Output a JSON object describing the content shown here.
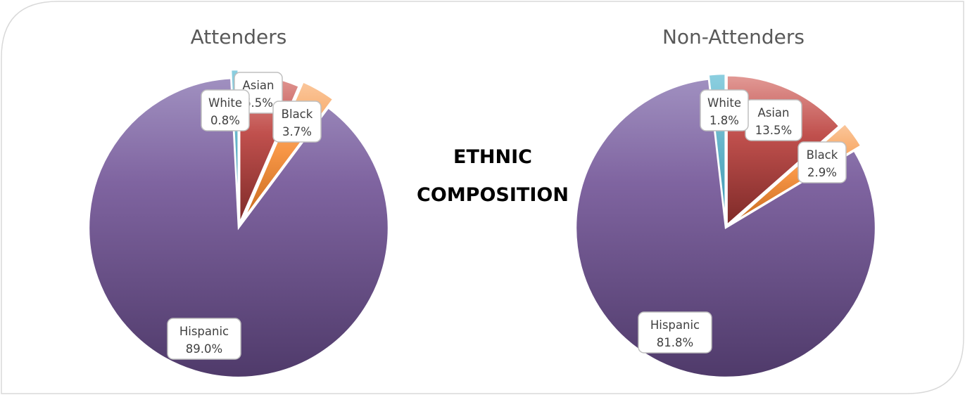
{
  "chart_data": [
    {
      "type": "pie",
      "title": "Attenders",
      "categories": [
        "Asian",
        "Black",
        "Hispanic",
        "White"
      ],
      "values": [
        6.5,
        3.7,
        89.0,
        0.8
      ],
      "labels": [
        "6.5%",
        "3.7%",
        "89.0%",
        "0.8%"
      ],
      "colors": [
        "#c0504d",
        "#f79646",
        "#8064a2",
        "#4bacc6"
      ]
    },
    {
      "type": "pie",
      "title": "Non-Attenders",
      "categories": [
        "Asian",
        "Black",
        "Hispanic",
        "White"
      ],
      "values": [
        13.5,
        2.9,
        81.8,
        1.8
      ],
      "labels": [
        "13.5%",
        "2.9%",
        "81.8%",
        "1.8%"
      ],
      "colors": [
        "#c0504d",
        "#f79646",
        "#8064a2",
        "#4bacc6"
      ]
    }
  ],
  "center_title": {
    "line1": "ETHNIC",
    "line2": "COMPOSITION"
  }
}
